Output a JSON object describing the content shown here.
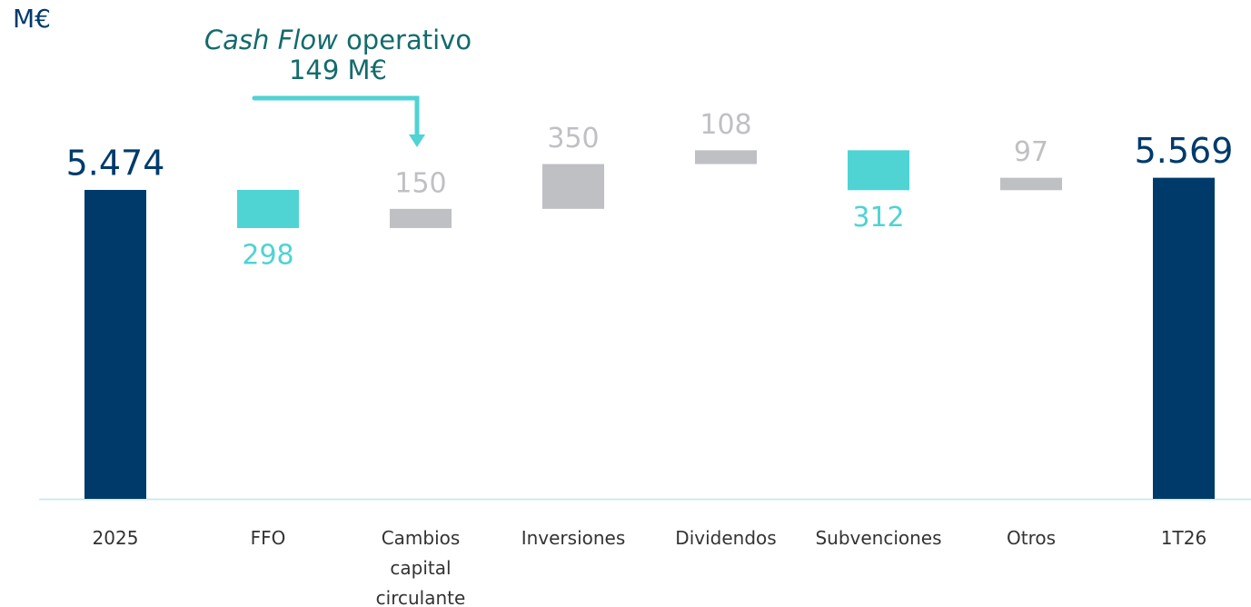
{
  "chart_data": {
    "type": "waterfall",
    "unit": "M€",
    "annotation": {
      "italic": "Cash Flow",
      "text": "operativo",
      "value": "149 M€"
    },
    "categories": [
      "2025",
      "FFO",
      "Cambios capital circulante",
      "Inversiones",
      "Dividendos",
      "Subvenciones",
      "Otros",
      "1T26"
    ],
    "measures": [
      "absolute",
      "relative",
      "relative",
      "relative",
      "relative",
      "relative",
      "relative",
      "total"
    ],
    "values": [
      5474,
      -298,
      150,
      350,
      108,
      -312,
      97,
      5569
    ],
    "value_labels": [
      "5.474",
      "298",
      "150",
      "350",
      "108",
      "312",
      "97",
      "5.569"
    ],
    "colors": {
      "total": "#003a6b",
      "decrease": "#4fd3d3",
      "increase": "#bfc0c4"
    },
    "ylim": [
      3060,
      5900
    ]
  }
}
